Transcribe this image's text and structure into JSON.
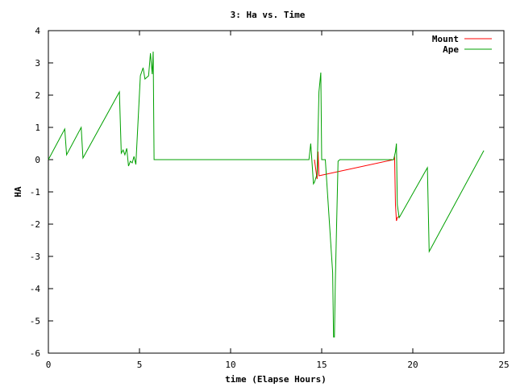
{
  "chart_data": {
    "type": "line",
    "title": "3: Ha vs. Time",
    "xlabel": "time (Elapse Hours)",
    "ylabel": "HA",
    "xlim": [
      0,
      25
    ],
    "ylim": [
      -6,
      4
    ],
    "xticks": [
      "0",
      "5",
      "10",
      "15",
      "20",
      "25"
    ],
    "yticks": [
      "4",
      "3",
      "2",
      "1",
      "0",
      "-1",
      "-2",
      "-3",
      "-4",
      "-5",
      "-6"
    ],
    "grid": false,
    "legend_position": "top-right",
    "series": [
      {
        "name": "Mount",
        "color": "#ff0000",
        "x": [
          14.6,
          14.75,
          14.8,
          14.85,
          18.95,
          19.0,
          19.05,
          19.1,
          19.15,
          19.25
        ],
        "y": [
          0.0,
          -0.6,
          0.25,
          -0.5,
          0.0,
          0.1,
          -1.4,
          -1.9,
          -1.8,
          -1.75
        ]
      },
      {
        "name": "Ape",
        "color": "#00a000",
        "x": [
          0.0,
          0.9,
          1.0,
          1.8,
          1.9,
          3.9,
          4.0,
          4.1,
          4.2,
          4.3,
          4.4,
          4.5,
          4.6,
          4.7,
          4.8,
          5.05,
          5.2,
          5.3,
          5.5,
          5.6,
          5.7,
          5.75,
          5.8,
          14.3,
          14.4,
          14.55,
          14.6,
          14.75,
          14.85,
          14.95,
          15.0,
          15.1,
          15.2,
          15.6,
          15.65,
          15.7,
          15.75,
          15.9,
          16.0,
          18.95,
          19.05,
          19.1,
          19.15,
          19.25,
          20.8,
          20.9,
          23.9
        ],
        "y": [
          0.0,
          0.95,
          0.15,
          1.0,
          0.05,
          2.1,
          0.2,
          0.3,
          0.15,
          0.35,
          -0.2,
          -0.05,
          -0.1,
          0.1,
          -0.15,
          2.6,
          2.85,
          2.5,
          2.6,
          3.3,
          2.65,
          3.35,
          0.0,
          0.0,
          0.5,
          -0.75,
          -0.7,
          -0.45,
          2.1,
          2.7,
          0.0,
          0.0,
          0.0,
          -3.5,
          -5.5,
          -5.5,
          -3.8,
          -0.05,
          0.0,
          0.0,
          0.25,
          0.5,
          -1.4,
          -1.8,
          -0.25,
          -2.85,
          0.28
        ]
      }
    ]
  }
}
